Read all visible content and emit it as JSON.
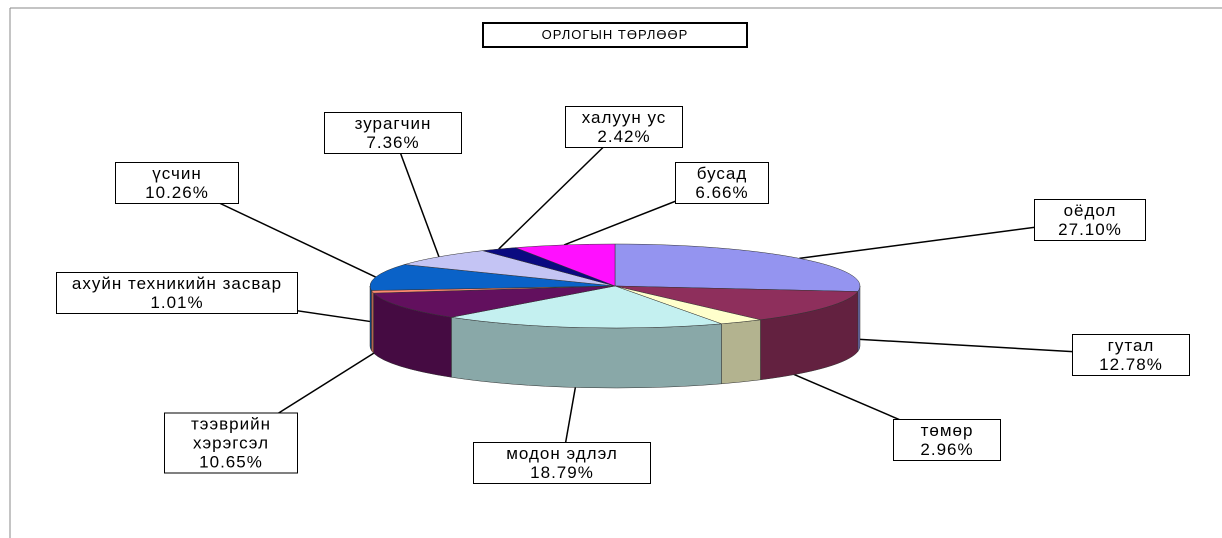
{
  "chart_data": {
    "type": "pie3d",
    "title": "ОРЛОГЫН ТӨРЛӨӨР",
    "categories": [
      "оёдол",
      "гутал",
      "төмөр",
      "модон эдлэл",
      "тээврийн хэрэгсэл",
      "ахуйн техникийн засвар",
      "үсчин",
      "зурагчин",
      "халуун ус",
      "бусад"
    ],
    "values": [
      27.1,
      12.78,
      2.96,
      18.79,
      10.65,
      1.01,
      10.26,
      7.36,
      2.42,
      6.66
    ],
    "value_labels": [
      "27.10%",
      "12.78%",
      "2.96%",
      "18.79%",
      "10.65%",
      "1.01%",
      "10.26%",
      "7.36%",
      "2.42%",
      "6.66%"
    ],
    "colors": [
      "#9494f0",
      "#8e2f5c",
      "#ffffcc",
      "#c4f0f0",
      "#62105e",
      "#ff8a70",
      "#0a62c8",
      "#c4c4f4",
      "#0a0a80",
      "#ff10ff"
    ]
  }
}
